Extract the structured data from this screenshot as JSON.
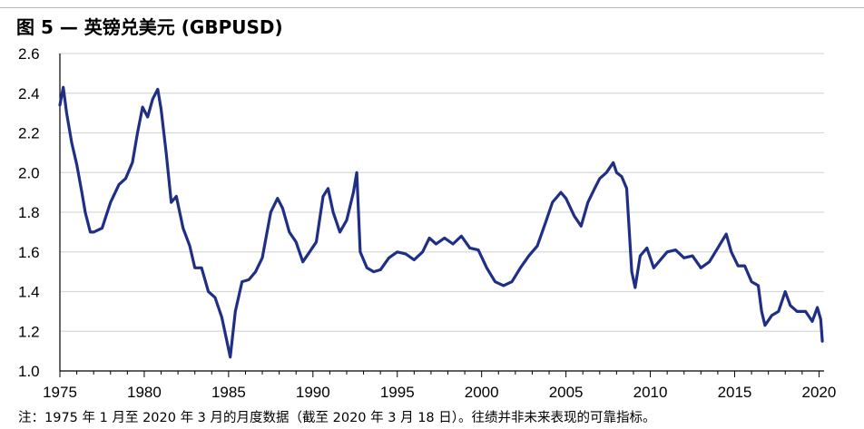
{
  "title": "图 5 — 英镑兑美元 (GBPUSD)",
  "note": "注：1975 年 1 月至 2020 年 3 月的月度数据（截至 2020 年 3 月 18 日）。往绩并非未来表现的可靠指标。",
  "colors": {
    "line": "#1f2f86",
    "grid": "#d9d9d9",
    "axis": "#000000"
  },
  "chart_data": {
    "type": "line",
    "title": "图 5 — 英镑兑美元 (GBPUSD)",
    "xlabel": "",
    "ylabel": "",
    "xlim": [
      1975,
      2020.3
    ],
    "ylim": [
      1.0,
      2.6
    ],
    "yticks": [
      "1.0",
      "1.2",
      "1.4",
      "1.6",
      "1.8",
      "2.0",
      "2.2",
      "2.4",
      "2.6"
    ],
    "xticks": [
      "1975",
      "1980",
      "1985",
      "1990",
      "1995",
      "2000",
      "2005",
      "2010",
      "2015",
      "2020"
    ],
    "grid": true,
    "series": [
      {
        "name": "",
        "x": [
          1975.0,
          1975.2,
          1975.4,
          1975.7,
          1976.0,
          1976.3,
          1976.5,
          1976.8,
          1977.0,
          1977.5,
          1978.0,
          1978.5,
          1978.9,
          1979.3,
          1979.6,
          1979.9,
          1980.2,
          1980.5,
          1980.8,
          1981.0,
          1981.3,
          1981.6,
          1981.9,
          1982.3,
          1982.7,
          1983.0,
          1983.4,
          1983.8,
          1984.2,
          1984.6,
          1984.9,
          1985.1,
          1985.4,
          1985.8,
          1986.2,
          1986.6,
          1987.0,
          1987.5,
          1987.9,
          1988.2,
          1988.6,
          1989.0,
          1989.4,
          1989.8,
          1990.2,
          1990.6,
          1990.9,
          1991.2,
          1991.6,
          1992.0,
          1992.4,
          1992.6,
          1992.8,
          1993.2,
          1993.6,
          1994.0,
          1994.5,
          1995.0,
          1995.5,
          1996.0,
          1996.5,
          1996.9,
          1997.3,
          1997.8,
          1998.3,
          1998.8,
          1999.3,
          1999.8,
          2000.3,
          2000.8,
          2001.3,
          2001.8,
          2002.3,
          2002.8,
          2003.3,
          2003.8,
          2004.2,
          2004.7,
          2005.0,
          2005.5,
          2005.9,
          2006.3,
          2006.7,
          2007.0,
          2007.4,
          2007.8,
          2008.0,
          2008.3,
          2008.6,
          2008.9,
          2009.1,
          2009.4,
          2009.8,
          2010.2,
          2010.6,
          2011.0,
          2011.5,
          2012.0,
          2012.5,
          2013.0,
          2013.5,
          2014.0,
          2014.5,
          2014.8,
          2015.2,
          2015.6,
          2016.0,
          2016.4,
          2016.6,
          2016.8,
          2017.2,
          2017.6,
          2018.0,
          2018.3,
          2018.7,
          2019.2,
          2019.6,
          2019.9,
          2020.1,
          2020.2
        ],
        "y": [
          2.34,
          2.43,
          2.3,
          2.15,
          2.04,
          1.9,
          1.8,
          1.7,
          1.7,
          1.72,
          1.85,
          1.94,
          1.97,
          2.05,
          2.2,
          2.33,
          2.28,
          2.37,
          2.42,
          2.32,
          2.1,
          1.85,
          1.88,
          1.72,
          1.63,
          1.52,
          1.52,
          1.4,
          1.37,
          1.27,
          1.15,
          1.07,
          1.3,
          1.45,
          1.46,
          1.5,
          1.57,
          1.8,
          1.87,
          1.82,
          1.7,
          1.65,
          1.55,
          1.6,
          1.65,
          1.88,
          1.92,
          1.8,
          1.7,
          1.76,
          1.9,
          2.0,
          1.6,
          1.52,
          1.5,
          1.51,
          1.57,
          1.6,
          1.59,
          1.56,
          1.6,
          1.67,
          1.64,
          1.67,
          1.64,
          1.68,
          1.62,
          1.61,
          1.52,
          1.45,
          1.43,
          1.45,
          1.52,
          1.58,
          1.63,
          1.75,
          1.85,
          1.9,
          1.87,
          1.78,
          1.73,
          1.85,
          1.92,
          1.97,
          2.0,
          2.05,
          2.0,
          1.98,
          1.92,
          1.5,
          1.42,
          1.58,
          1.62,
          1.52,
          1.56,
          1.6,
          1.61,
          1.57,
          1.58,
          1.52,
          1.55,
          1.62,
          1.69,
          1.6,
          1.53,
          1.53,
          1.45,
          1.43,
          1.3,
          1.23,
          1.28,
          1.3,
          1.4,
          1.33,
          1.3,
          1.3,
          1.25,
          1.32,
          1.26,
          1.15
        ]
      }
    ]
  }
}
